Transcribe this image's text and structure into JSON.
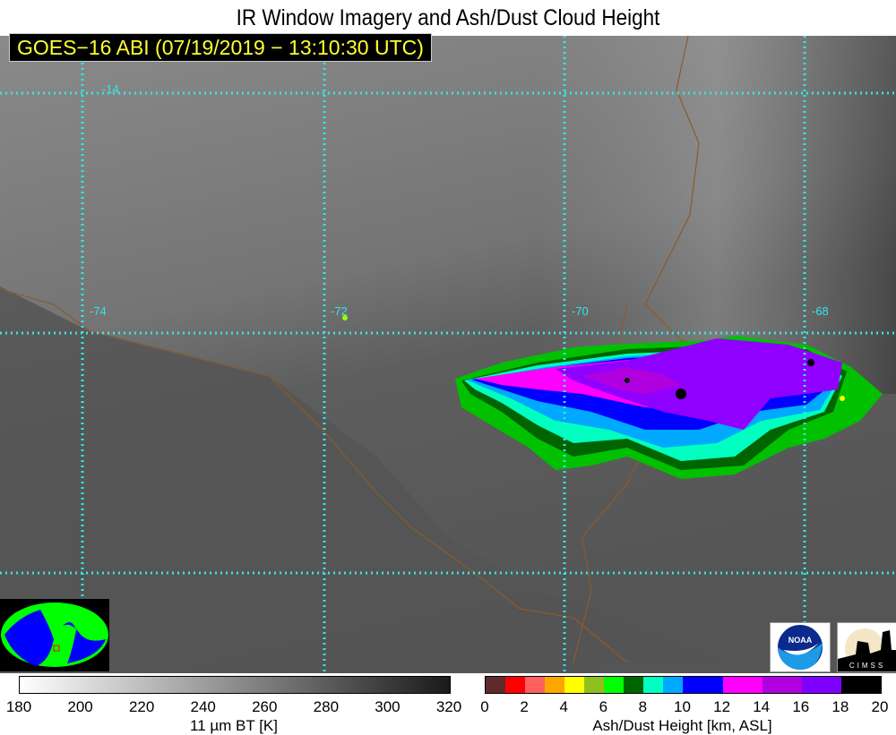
{
  "title": "IR Window Imagery and Ash/Dust Cloud Height",
  "subtitle": "GOES−16 ABI (07/19/2019 − 13:10:30 UTC)",
  "map": {
    "latitude_labels": [
      "-14"
    ],
    "longitude_labels": [
      "-74",
      "-72",
      "-70",
      "-68"
    ],
    "gridline_color": "#33e6e6",
    "border_color": "#8b5a2b"
  },
  "logos": {
    "noaa": "NOAA",
    "cimss": "CIMSS"
  },
  "bt_colorbar": {
    "label": "11 µm BT [K]",
    "ticks": [
      "180",
      "200",
      "220",
      "240",
      "260",
      "280",
      "300",
      "320"
    ],
    "range": [
      180,
      320
    ],
    "colors": [
      "#ffffff",
      "#000000"
    ]
  },
  "ash_colorbar": {
    "label": "Ash/Dust Height [km, ASL]",
    "ticks": [
      "0",
      "2",
      "4",
      "6",
      "8",
      "10",
      "12",
      "14",
      "16",
      "18",
      "20"
    ],
    "range": [
      0,
      20
    ],
    "colors": [
      "#5e2a2a",
      "#ff0000",
      "#ff6060",
      "#ffa500",
      "#ffff00",
      "#90c020",
      "#00ff00",
      "#006400",
      "#00ffc0",
      "#00a8ff",
      "#0000ff",
      "#0000ff",
      "#ff00ff",
      "#ff00ff",
      "#b000e0",
      "#b000e0",
      "#8000ff",
      "#8000ff",
      "#000000",
      "#000000"
    ]
  }
}
